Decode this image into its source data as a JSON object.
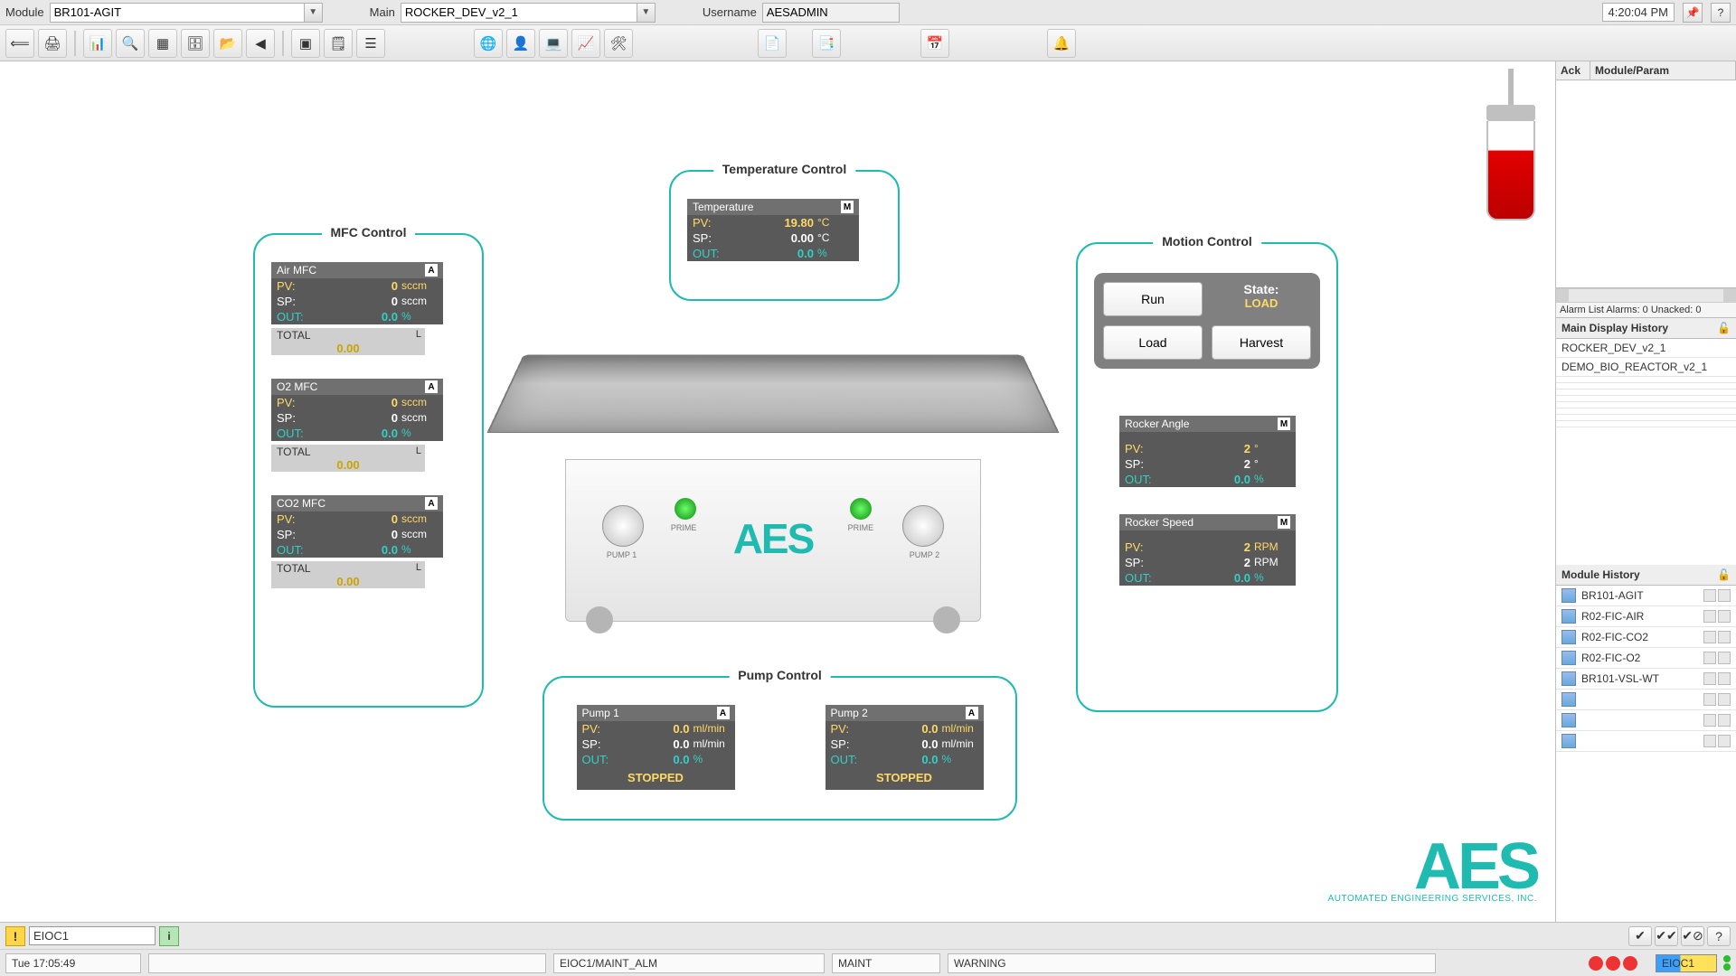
{
  "ctx": {
    "module_label": "Module",
    "module_value": "BR101-AGIT",
    "main_label": "Main",
    "main_value": "ROCKER_DEV_v2_1",
    "username_label": "Username",
    "username_value": "AESADMIN",
    "clock": "4:20:04 PM"
  },
  "groups": {
    "mfc": {
      "title": "MFC Control",
      "items": [
        {
          "name": "Air MFC",
          "mode": "A",
          "pv": "0",
          "pv_unit": "sccm",
          "sp": "0",
          "sp_unit": "sccm",
          "out": "0.0",
          "out_unit": "%",
          "total_label": "TOTAL",
          "total_unit": "L",
          "total_val": "0.00"
        },
        {
          "name": "O2 MFC",
          "mode": "A",
          "pv": "0",
          "pv_unit": "sccm",
          "sp": "0",
          "sp_unit": "sccm",
          "out": "0.0",
          "out_unit": "%",
          "total_label": "TOTAL",
          "total_unit": "L",
          "total_val": "0.00"
        },
        {
          "name": "CO2 MFC",
          "mode": "A",
          "pv": "0",
          "pv_unit": "sccm",
          "sp": "0",
          "sp_unit": "sccm",
          "out": "0.0",
          "out_unit": "%",
          "total_label": "TOTAL",
          "total_unit": "L",
          "total_val": "0.00"
        }
      ]
    },
    "temp": {
      "title": "Temperature Control",
      "item": {
        "name": "Temperature",
        "mode": "M",
        "pv": "19.80",
        "pv_unit": "°C",
        "sp": "0.00",
        "sp_unit": "°C",
        "out": "0.0",
        "out_unit": "%"
      }
    },
    "pump": {
      "title": "Pump Control",
      "items": [
        {
          "name": "Pump 1",
          "mode": "A",
          "pv": "0.0",
          "pv_unit": "ml/min",
          "sp": "0.0",
          "sp_unit": "ml/min",
          "out": "0.0",
          "out_unit": "%",
          "status": "STOPPED"
        },
        {
          "name": "Pump 2",
          "mode": "A",
          "pv": "0.0",
          "pv_unit": "ml/min",
          "sp": "0.0",
          "sp_unit": "ml/min",
          "out": "0.0",
          "out_unit": "%",
          "status": "STOPPED"
        }
      ]
    },
    "motion": {
      "title": "Motion Control",
      "buttons": {
        "run": "Run",
        "load": "Load",
        "harvest": "Harvest"
      },
      "state_label": "State:",
      "state_value": "LOAD",
      "angle": {
        "name": "Rocker Angle",
        "mode": "M",
        "pv": "2",
        "pv_unit": "°",
        "sp": "2",
        "sp_unit": "°",
        "out": "0.0",
        "out_unit": "%"
      },
      "speed": {
        "name": "Rocker Speed",
        "mode": "M",
        "pv": "2",
        "pv_unit": "RPM",
        "sp": "2",
        "sp_unit": "RPM",
        "out": "0.0",
        "out_unit": "%"
      }
    }
  },
  "fp_labels": {
    "pv": "PV:",
    "sp": "SP:",
    "out": "OUT:"
  },
  "machine": {
    "prime": "PRIME",
    "pump1": "PUMP 1",
    "pump2": "PUMP 2",
    "logo": "AES"
  },
  "aes_logo": {
    "text": "AES",
    "tagline": "AUTOMATED ENGINEERING SERVICES, INC."
  },
  "sidebar": {
    "cols": {
      "ack": "Ack",
      "modparam": "Module/Param"
    },
    "alarm_status": "Alarm List  Alarms: 0  Unacked: 0",
    "main_history_title": "Main Display History",
    "main_history": [
      "ROCKER_DEV_v2_1",
      "DEMO_BIO_REACTOR_v2_1"
    ],
    "module_history_title": "Module History",
    "module_history": [
      "BR101-AGIT",
      "R02-FIC-AIR",
      "R02-FIC-CO2",
      "R02-FIC-O2",
      "BR101-VSL-WT"
    ]
  },
  "status1": {
    "eioc": "EIOC1",
    "info": "i"
  },
  "status2": {
    "time": "Tue 17:05:49",
    "path": "EIOC1/MAINT_ALM",
    "maint": "MAINT",
    "warning": "WARNING",
    "chip": "EIOC1"
  },
  "colors": {
    "border": "#1fbab0",
    "fp_bg": "#595959",
    "fp_hdr": "#707070",
    "pv": "#ffd966",
    "out": "#33d0c6"
  }
}
